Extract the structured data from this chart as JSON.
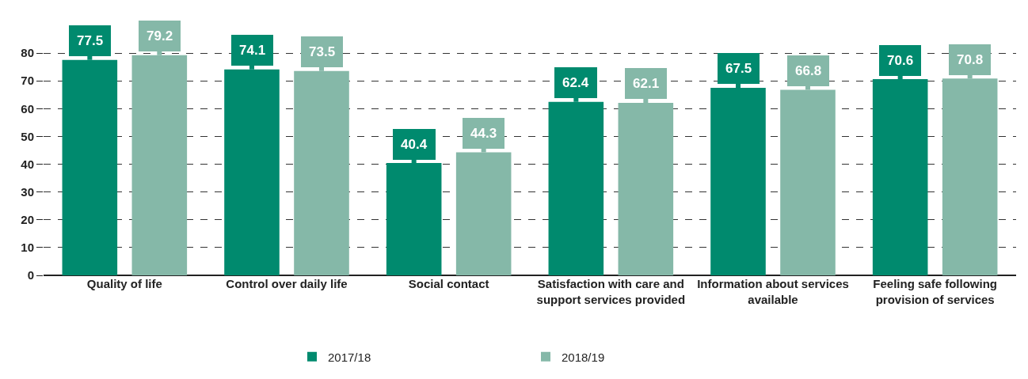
{
  "chart_data": {
    "type": "bar",
    "categories": [
      "Quality of life",
      "Control over daily life",
      "Social contact",
      "Satisfaction with care and support services provided",
      "Information about services available",
      "Feeling safe following provision of services"
    ],
    "series": [
      {
        "name": "2017/18",
        "color": "#008a6e",
        "values": [
          77.5,
          74.1,
          40.4,
          62.4,
          67.5,
          70.6
        ]
      },
      {
        "name": "2018/19",
        "color": "#85b8a8",
        "values": [
          79.2,
          73.5,
          44.3,
          62.1,
          66.8,
          70.8
        ]
      }
    ],
    "ylim": [
      0,
      82
    ],
    "yticks": [
      0,
      10,
      20,
      30,
      40,
      50,
      60,
      70,
      80
    ],
    "grid": "y",
    "legend": "bottom",
    "data_labels": true
  }
}
